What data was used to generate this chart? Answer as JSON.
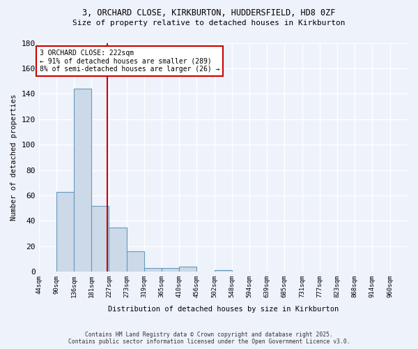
{
  "title1": "3, ORCHARD CLOSE, KIRKBURTON, HUDDERSFIELD, HD8 0ZF",
  "title2": "Size of property relative to detached houses in Kirkburton",
  "xlabel": "Distribution of detached houses by size in Kirkburton",
  "ylabel": "Number of detached properties",
  "bin_edges": [
    44,
    90,
    136,
    181,
    227,
    273,
    319,
    365,
    410,
    456,
    502,
    548,
    594,
    639,
    685,
    731,
    777,
    823,
    868,
    914,
    960
  ],
  "counts": [
    0,
    63,
    144,
    52,
    35,
    16,
    3,
    3,
    4,
    0,
    1,
    0,
    0,
    0,
    0,
    0,
    0,
    0,
    0,
    0
  ],
  "bar_color": "#ccd9e8",
  "bar_edge_color": "#6699bb",
  "property_size": 222,
  "annotation_text": "3 ORCHARD CLOSE: 222sqm\n← 91% of detached houses are smaller (289)\n8% of semi-detached houses are larger (26) →",
  "annotation_box_color": "white",
  "annotation_border_color": "#cc0000",
  "vline_color": "#cc0000",
  "background_color": "#eef2fb",
  "grid_color": "white",
  "footer1": "Contains HM Land Registry data © Crown copyright and database right 2025.",
  "footer2": "Contains public sector information licensed under the Open Government Licence v3.0.",
  "ylim": [
    0,
    180
  ],
  "yticks": [
    0,
    20,
    40,
    60,
    80,
    100,
    120,
    140,
    160,
    180
  ]
}
